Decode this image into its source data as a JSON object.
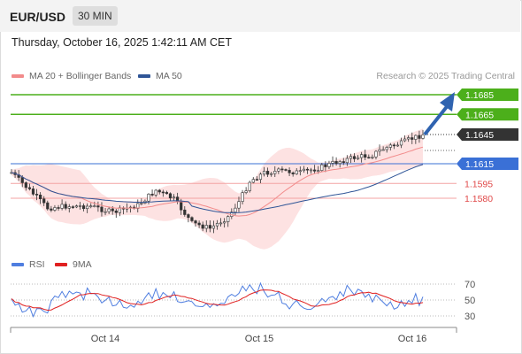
{
  "header": {
    "pair": "EUR/USD",
    "timeframe": "30 MIN"
  },
  "datetime": "Thursday, October 16, 2025 1:42:11 AM CET",
  "legend": {
    "ma20": {
      "label": "MA 20 + Bollinger Bands",
      "color": "#f28b8b"
    },
    "ma50": {
      "label": "MA 50",
      "color": "#2f5597"
    }
  },
  "credit": "Research © 2025 Trading Central",
  "levels": [
    {
      "value": "1.1685",
      "kind": "resistance",
      "color": "#4caf1b"
    },
    {
      "value": "1.1665",
      "kind": "resistance",
      "color": "#4caf1b"
    },
    {
      "value": "1.1645",
      "kind": "last",
      "color": "#333333"
    },
    {
      "value": "1.1615",
      "kind": "pivot",
      "color": "#3a70d6"
    },
    {
      "value": "1.1595",
      "kind": "support",
      "color": "#e04848"
    },
    {
      "value": "1.1580",
      "kind": "support",
      "color": "#e04848"
    }
  ],
  "rsi_legend": {
    "rsi": {
      "label": "RSI",
      "color": "#4f7ee0"
    },
    "ma9": {
      "label": "9MA",
      "color": "#e02020"
    }
  },
  "rsi_ticks": [
    "70",
    "50",
    "30"
  ],
  "xaxis": [
    "Oct 14",
    "Oct 15",
    "Oct 16"
  ]
}
